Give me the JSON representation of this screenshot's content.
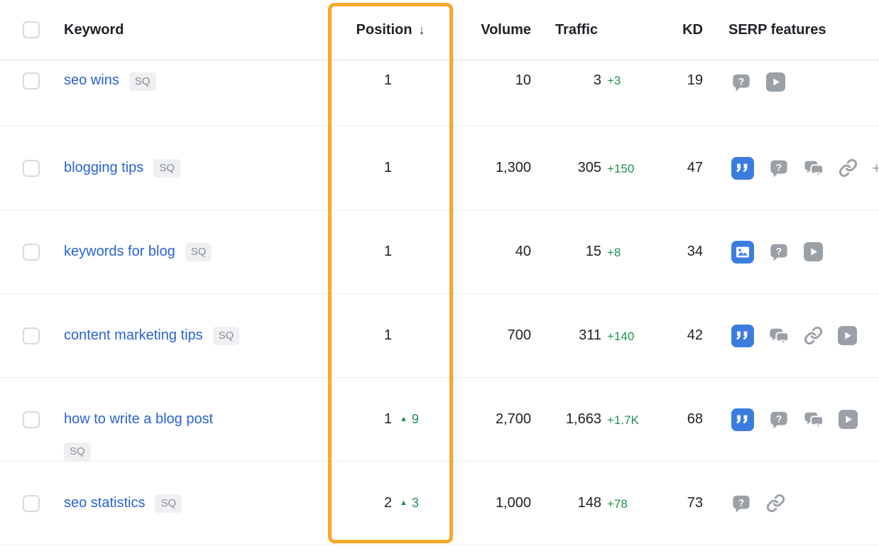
{
  "table": {
    "header": {
      "keyword": "Keyword",
      "position": "Position",
      "sort_arrow": "↓",
      "volume": "Volume",
      "traffic": "Traffic",
      "kd": "KD",
      "serp_features": "SERP features"
    },
    "rows": [
      {
        "keyword": "seo wins",
        "badge": "SQ",
        "badge_wrap": false,
        "position": "1",
        "position_change": "",
        "volume": "10",
        "traffic": "3",
        "traffic_change": "+3",
        "kd": "19",
        "serp_features": [
          "question",
          "video"
        ],
        "overflow_indicator": ""
      },
      {
        "keyword": "blogging tips",
        "badge": "SQ",
        "badge_wrap": false,
        "position": "1",
        "position_change": "",
        "volume": "1,300",
        "traffic": "305",
        "traffic_change": "+150",
        "kd": "47",
        "serp_features": [
          "featured-snippet",
          "question",
          "discussions",
          "link"
        ],
        "overflow_indicator": "+"
      },
      {
        "keyword": "keywords for blog",
        "badge": "SQ",
        "badge_wrap": false,
        "position": "1",
        "position_change": "",
        "volume": "40",
        "traffic": "15",
        "traffic_change": "+8",
        "kd": "34",
        "serp_features": [
          "image-pack",
          "question",
          "video"
        ],
        "overflow_indicator": ""
      },
      {
        "keyword": "content marketing tips",
        "badge": "SQ",
        "badge_wrap": false,
        "position": "1",
        "position_change": "",
        "volume": "700",
        "traffic": "311",
        "traffic_change": "+140",
        "kd": "42",
        "serp_features": [
          "featured-snippet",
          "discussions",
          "link",
          "video"
        ],
        "overflow_indicator": ""
      },
      {
        "keyword": "how to write a blog post",
        "badge": "SQ",
        "badge_wrap": true,
        "position": "1",
        "position_change": "9",
        "volume": "2,700",
        "traffic": "1,663",
        "traffic_change": "+1.7K",
        "kd": "68",
        "serp_features": [
          "featured-snippet",
          "question",
          "discussions",
          "video"
        ],
        "overflow_indicator": ""
      },
      {
        "keyword": "seo statistics",
        "badge": "SQ",
        "badge_wrap": false,
        "position": "2",
        "position_change": "3",
        "volume": "1,000",
        "traffic": "148",
        "traffic_change": "+78",
        "kd": "73",
        "serp_features": [
          "question",
          "link"
        ],
        "overflow_indicator": ""
      }
    ],
    "up_arrow": "▲"
  },
  "colors": {
    "highlight": "#f8a82b",
    "link": "#2a63d2",
    "positive": "#1d9150",
    "icon_blue": "#3b7ce0",
    "icon_gray": "#9aa0a6"
  }
}
